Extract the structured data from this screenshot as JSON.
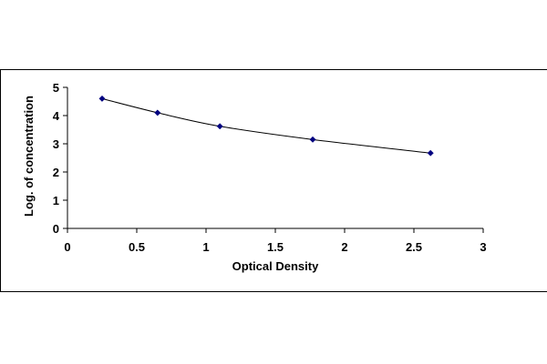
{
  "chart_data": {
    "type": "scatter",
    "title": "",
    "xlabel": "Optical Density",
    "ylabel": "Log. of concentration",
    "xlim": [
      0,
      3
    ],
    "ylim": [
      0,
      5
    ],
    "xticks": [
      0,
      0.5,
      1,
      1.5,
      2,
      2.5,
      3
    ],
    "yticks": [
      0,
      1,
      2,
      3,
      4,
      5
    ],
    "grid": false,
    "trendline": true,
    "series": [
      {
        "marker": "diamond",
        "color": "#000080",
        "x": [
          0.25,
          0.65,
          1.1,
          1.77,
          2.62
        ],
        "y": [
          4.6,
          4.1,
          3.62,
          3.15,
          2.67
        ]
      }
    ]
  }
}
